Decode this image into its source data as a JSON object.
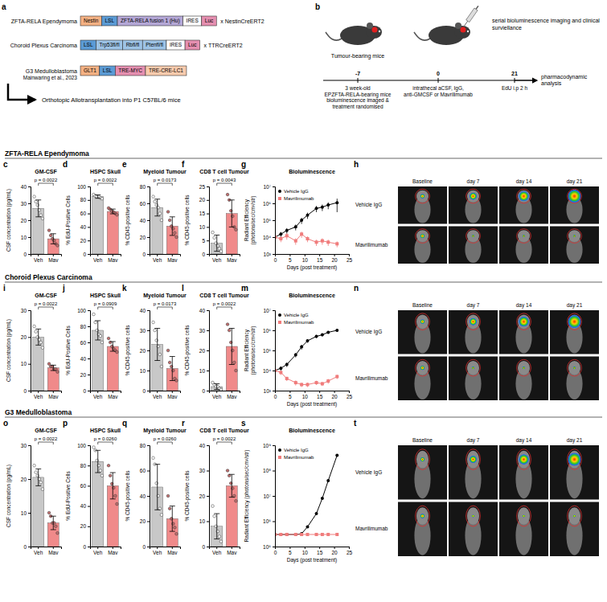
{
  "diagram": {
    "a": {
      "panel": "a",
      "constructs": [
        {
          "label": "ZFTA-RELA Ependymoma",
          "elements": [
            "Nestin",
            "LSL",
            "ZFTA-RELA fusion 1 (Hu)",
            "IRES",
            "Luc"
          ],
          "cross": "x NestinCreERT2"
        },
        {
          "label": "Choroid Plexus Carcinoma",
          "elements": [
            "LSL",
            "Trp53fl/fl",
            "Rbfl/fl",
            "Ptenfl/fl",
            "IRES",
            "Luc"
          ],
          "cross": "x TTRCreERT2"
        },
        {
          "label": "G3 Medulloblastoma",
          "citation": "Mainwaring et al., 2023",
          "elements": [
            "GLT1",
            "LSL",
            "TRE-MYC",
            "TRE-CRE-LC1"
          ]
        }
      ],
      "arrow_label": "Orthotopic Allotransplantation into P1 C57BL/6 mice"
    },
    "b": {
      "panel": "b",
      "mouse_label": "Tumour-bearing mice",
      "timeline": [
        {
          "day": -7,
          "text": "3 week-old EPZFTA-RELA-bearing mice bioluminescence imaged & treatment randomised"
        },
        {
          "day": 0,
          "text": "intrathecal aCSF, IgG, anti-GMCSF or Mavrilimumab"
        },
        {
          "day": 21,
          "text": "EdU i.p 2 h"
        }
      ],
      "imaging": "serial bioluminescence imaging and clinical surviellance",
      "endpoint": "pharmacodynamic analysis"
    }
  },
  "sections": [
    "ZFTA-RELA Ependymoma",
    "Choroid Plexus Carcinoma",
    "G3 Medulloblastoma"
  ],
  "images": [
    {
      "panel": "h",
      "columns": [
        "Baseline",
        "day 7",
        "day 14",
        "day 21"
      ],
      "rows": [
        "Vehicle IgG",
        "Mavrilimumab"
      ]
    },
    {
      "panel": "n",
      "columns": [
        "Baseline",
        "day 7",
        "day 14",
        "day 21"
      ],
      "rows": [
        "Vehicle IgG",
        "Mavrilimumab"
      ]
    },
    {
      "panel": "t",
      "columns": [
        "Baseline",
        "day 7",
        "day 14",
        "day 21"
      ],
      "rows": [
        "Vehicle IgG",
        "Mavrilimumab"
      ]
    }
  ],
  "chart_data": [
    {
      "panel": "c",
      "type": "bar",
      "title": "GM-CSF",
      "y_label": "CSF concentration (pg/mL)",
      "categories": [
        "Veh",
        "Mav"
      ],
      "values": [
        27,
        9
      ],
      "errors": [
        5,
        3
      ],
      "points": [
        [
          34,
          31,
          29,
          26,
          23,
          21
        ],
        [
          14,
          11,
          9,
          8,
          6,
          5
        ]
      ],
      "colors": [
        "#c8c8c8",
        "#f08a8a"
      ],
      "ylim": [
        0,
        40
      ],
      "yticks": [
        0,
        10,
        20,
        30,
        40
      ],
      "annotations": [
        "p = 0.0022"
      ]
    },
    {
      "panel": "d",
      "type": "bar",
      "title": "HSPC Skull",
      "y_label": "% EdU-Positive Cells",
      "categories": [
        "Veh",
        "Mav"
      ],
      "values": [
        85,
        63
      ],
      "errors": [
        2.5,
        3.5
      ],
      "points": [
        [
          88,
          86,
          85,
          85,
          83,
          82
        ],
        [
          68,
          66,
          63,
          62,
          60,
          58
        ]
      ],
      "colors": [
        "#c8c8c8",
        "#f08a8a"
      ],
      "ylim": [
        0,
        100
      ],
      "yticks": [
        0,
        20,
        40,
        60,
        80,
        100
      ],
      "annotations": [
        "p = 0.0022"
      ]
    },
    {
      "panel": "e",
      "type": "bar",
      "title": "Myeloid Tumour",
      "y_label": "% CD45-positive cells",
      "categories": [
        "Veh",
        "Mav"
      ],
      "values": [
        55,
        33
      ],
      "errors": [
        10,
        11
      ],
      "points": [
        [
          68,
          62,
          58,
          55,
          48,
          40
        ],
        [
          50,
          40,
          33,
          30,
          25,
          20
        ]
      ],
      "colors": [
        "#c8c8c8",
        "#f08a8a"
      ],
      "ylim": [
        0,
        80
      ],
      "yticks": [
        0,
        20,
        40,
        60,
        80
      ],
      "annotations": [
        "p = 0.0173"
      ]
    },
    {
      "panel": "f",
      "type": "bar",
      "title": "CD8 T cell Tumour",
      "y_label": "% CD45-positive cells",
      "categories": [
        "Veh",
        "Mav"
      ],
      "values": [
        4,
        15
      ],
      "errors": [
        3,
        5
      ],
      "points": [
        [
          8,
          6,
          4,
          3,
          2,
          1
        ],
        [
          22,
          20,
          16,
          14,
          10,
          9
        ]
      ],
      "colors": [
        "#c8c8c8",
        "#f08a8a"
      ],
      "ylim": [
        0,
        25
      ],
      "yticks": [
        0,
        5,
        10,
        15,
        20,
        25
      ],
      "annotations": [
        "p = 0.0043"
      ]
    },
    {
      "panel": "g",
      "type": "line",
      "title": "Bioluminescence",
      "x_label": "Days (post treatment)",
      "y_label": "Radiant Efficiency (photons/sec/cm²/str)",
      "x": [
        0,
        2,
        4,
        7,
        9,
        11,
        14,
        16,
        18,
        21
      ],
      "series": [
        {
          "name": "Vehicle IgG",
          "color": "#000000",
          "marker": "circle",
          "values": [
            10000,
            15000,
            25000,
            40000,
            100000,
            200000,
            500000,
            600000,
            800000,
            1100000
          ],
          "errors": [
            3000,
            5000,
            9000,
            15000,
            40000,
            80000,
            200000,
            250000,
            350000,
            800000
          ]
        },
        {
          "name": "Mavrilimumab",
          "color": "#f07c7c",
          "marker": "square",
          "values": [
            10000,
            8000,
            12000,
            6000,
            15000,
            8000,
            5000,
            6000,
            5000,
            4000
          ],
          "errors": [
            4000,
            3000,
            5000,
            2500,
            6000,
            3000,
            2000,
            2500,
            2000,
            1500
          ]
        }
      ],
      "log": "y",
      "xlim": [
        0,
        25
      ],
      "xticks": [
        0,
        5,
        10,
        15,
        20,
        25
      ],
      "ylim": [
        1000,
        10000000
      ],
      "yticks": [
        {
          "value": 1000,
          "label": "10³"
        },
        {
          "value": 10000,
          "label": "10⁴"
        },
        {
          "value": 100000,
          "label": "10⁵"
        },
        {
          "value": 1000000,
          "label": "10⁶"
        },
        {
          "value": 10000000,
          "label": "10⁷"
        }
      ],
      "legend": "upper left"
    },
    {
      "panel": "i",
      "type": "bar",
      "title": "GM-CSF",
      "y_label": "CSF concentration (pg/mL)",
      "categories": [
        "Veh",
        "Mav"
      ],
      "values": [
        20,
        8.5
      ],
      "errors": [
        3,
        1
      ],
      "points": [
        [
          24,
          22,
          20,
          19,
          18,
          16
        ],
        [
          10,
          9,
          9,
          8,
          8,
          7
        ]
      ],
      "colors": [
        "#c8c8c8",
        "#f08a8a"
      ],
      "ylim": [
        0,
        30
      ],
      "yticks": [
        0,
        10,
        20,
        30
      ],
      "annotations": [
        "p = 0.0022"
      ]
    },
    {
      "panel": "j",
      "type": "bar",
      "title": "HSPC Skull",
      "y_label": "% EdU-Positive Cells",
      "categories": [
        "Veh",
        "Mav"
      ],
      "values": [
        75,
        55
      ],
      "errors": [
        12,
        6
      ],
      "points": [
        [
          95,
          85,
          75,
          70,
          68,
          60
        ],
        [
          65,
          60,
          55,
          52,
          50,
          48
        ]
      ],
      "colors": [
        "#c8c8c8",
        "#f08a8a"
      ],
      "ylim": [
        0,
        100
      ],
      "yticks": [
        0,
        20,
        40,
        60,
        80,
        100
      ],
      "annotations": [
        "p = 0.0909"
      ]
    },
    {
      "panel": "k",
      "type": "bar",
      "title": "Myeloid Tumour",
      "y_label": "% CD45-positive cells",
      "categories": [
        "Veh",
        "Mav"
      ],
      "values": [
        23,
        11
      ],
      "errors": [
        8,
        6
      ],
      "points": [
        [
          34,
          30,
          25,
          22,
          18,
          12
        ],
        [
          20,
          14,
          12,
          10,
          6,
          5
        ]
      ],
      "colors": [
        "#c8c8c8",
        "#f08a8a"
      ],
      "ylim": [
        0,
        40
      ],
      "yticks": [
        0,
        10,
        20,
        30,
        40
      ],
      "annotations": [
        "p = 0.0173"
      ]
    },
    {
      "panel": "l",
      "type": "bar",
      "title": "CD8 T cell Tumour",
      "y_label": "% CD45-positive cells",
      "categories": [
        "Veh",
        "Mav"
      ],
      "values": [
        2,
        22
      ],
      "errors": [
        1.4,
        9
      ],
      "points": [
        [
          4,
          3,
          2,
          2,
          1,
          0.5
        ],
        [
          33,
          30,
          24,
          20,
          14,
          10
        ]
      ],
      "colors": [
        "#c8c8c8",
        "#f08a8a"
      ],
      "ylim": [
        0,
        40
      ],
      "yticks": [
        0,
        10,
        20,
        30,
        40
      ],
      "annotations": [
        "p = 0.0022"
      ]
    },
    {
      "panel": "m",
      "type": "line",
      "title": "Bioluminescence",
      "x_label": "Days (post treatment)",
      "y_label": "Radiant Efficiency (photons/sec/cm²/str)",
      "x": [
        0,
        2,
        4,
        7,
        9,
        11,
        14,
        16,
        18,
        21
      ],
      "series": [
        {
          "name": "Vehicle IgG",
          "color": "#000000",
          "marker": "circle",
          "values": [
            10000,
            13000,
            20000,
            60000,
            150000,
            300000,
            500000,
            600000,
            800000,
            1000000
          ],
          "errors": [
            2000,
            3000,
            5000,
            15000,
            40000,
            60000,
            90000,
            100000,
            120000,
            150000
          ]
        },
        {
          "name": "Mavrilimumab",
          "color": "#f07c7c",
          "marker": "square",
          "values": [
            10000,
            8000,
            4000,
            2500,
            2000,
            2000,
            2500,
            2200,
            3000,
            5000
          ],
          "errors": [
            3000,
            2000,
            1000,
            700,
            500,
            500,
            600,
            500,
            800,
            1200
          ]
        }
      ],
      "log": "y",
      "xlim": [
        0,
        25
      ],
      "xticks": [
        0,
        5,
        10,
        15,
        20,
        25
      ],
      "ylim": [
        1000,
        10000000
      ],
      "yticks": [
        {
          "value": 1000,
          "label": "10³"
        },
        {
          "value": 10000,
          "label": "10⁴"
        },
        {
          "value": 100000,
          "label": "10⁵"
        },
        {
          "value": 1000000,
          "label": "10⁶"
        },
        {
          "value": 10000000,
          "label": "10⁷"
        }
      ],
      "legend": "upper left"
    },
    {
      "panel": "o",
      "type": "bar",
      "title": "GM-CSF",
      "y_label": "CSF concentration (pg/mL)",
      "categories": [
        "Veh",
        "Mav"
      ],
      "values": [
        20.5,
        7
      ],
      "errors": [
        2.5,
        2
      ],
      "points": [
        [
          24,
          22,
          21,
          20,
          19,
          17
        ],
        [
          10,
          9,
          7,
          7,
          6,
          4
        ]
      ],
      "colors": [
        "#c8c8c8",
        "#f08a8a"
      ],
      "ylim": [
        0,
        30
      ],
      "yticks": [
        0,
        10,
        20,
        30
      ],
      "annotations": [
        "p = 0.0022"
      ]
    },
    {
      "panel": "p",
      "type": "bar",
      "title": "HSPC Skull",
      "y_label": "% EdU-Positive Cells",
      "categories": [
        "Veh",
        "Mav"
      ],
      "values": [
        84,
        60
      ],
      "errors": [
        11,
        13
      ],
      "points": [
        [
          98,
          95,
          85,
          80,
          75,
          70
        ],
        [
          80,
          70,
          62,
          58,
          50,
          42
        ]
      ],
      "colors": [
        "#c8c8c8",
        "#f08a8a"
      ],
      "ylim": [
        0,
        100
      ],
      "yticks": [
        0,
        20,
        40,
        60,
        80,
        100
      ],
      "annotations": [
        "p = 0.0260"
      ]
    },
    {
      "panel": "q",
      "type": "bar",
      "title": "Myeloid Tumour",
      "y_label": "% CD45-positive cells",
      "categories": [
        "Veh",
        "Mav"
      ],
      "values": [
        47,
        22
      ],
      "errors": [
        18,
        10
      ],
      "points": [
        [
          70,
          65,
          50,
          40,
          30,
          25
        ],
        [
          40,
          30,
          22,
          18,
          15,
          10
        ]
      ],
      "colors": [
        "#c8c8c8",
        "#f08a8a"
      ],
      "ylim": [
        0,
        80
      ],
      "yticks": [
        0,
        20,
        40,
        60,
        80
      ],
      "annotations": [
        "p = 0.0260"
      ]
    },
    {
      "panel": "r",
      "type": "bar",
      "title": "CD8 T cell Tumour",
      "y_label": "% CD45-positive cells",
      "categories": [
        "Veh",
        "Mav"
      ],
      "values": [
        8,
        24
      ],
      "errors": [
        5,
        4.5
      ],
      "points": [
        [
          16,
          12,
          8,
          6,
          4,
          2
        ],
        [
          30,
          28,
          25,
          23,
          20,
          18
        ]
      ],
      "colors": [
        "#c8c8c8",
        "#f08a8a"
      ],
      "ylim": [
        0,
        40
      ],
      "yticks": [
        0,
        10,
        20,
        30,
        40
      ],
      "annotations": [
        "p = 0.0022"
      ]
    },
    {
      "panel": "s",
      "type": "line",
      "title": "Bioluminescence",
      "x_label": "Days (post treatment)",
      "y_label": "Radiant Efficiency (photons/sec/cm²/str)",
      "x": [
        0,
        2,
        4,
        7,
        9,
        11,
        14,
        16,
        18,
        21
      ],
      "series": [
        {
          "name": "Vehicle IgG",
          "color": "#000000",
          "marker": "circle",
          "values": [
            300000,
            300000,
            300000,
            300000,
            320000,
            600000,
            2000000,
            8000000,
            40000000,
            400000000
          ]
        },
        {
          "name": "Mavrilimumab",
          "color": "#f07c7c",
          "marker": "square",
          "values": [
            300000,
            300000,
            300000,
            300000,
            300000,
            300000,
            300000,
            300000,
            300000,
            300000
          ]
        }
      ],
      "log": "y",
      "xlim": [
        0,
        25
      ],
      "xticks": [
        0,
        5,
        10,
        15,
        20,
        25
      ],
      "ylim": [
        100000,
        1000000000
      ],
      "yticks": [
        {
          "value": 100000,
          "label": "10⁵"
        },
        {
          "value": 1000000,
          "label": "10⁶"
        },
        {
          "value": 10000000,
          "label": "10⁷"
        },
        {
          "value": 100000000,
          "label": "10⁸"
        },
        {
          "value": 1000000000,
          "label": "10⁹"
        }
      ],
      "legend": "upper left"
    }
  ]
}
